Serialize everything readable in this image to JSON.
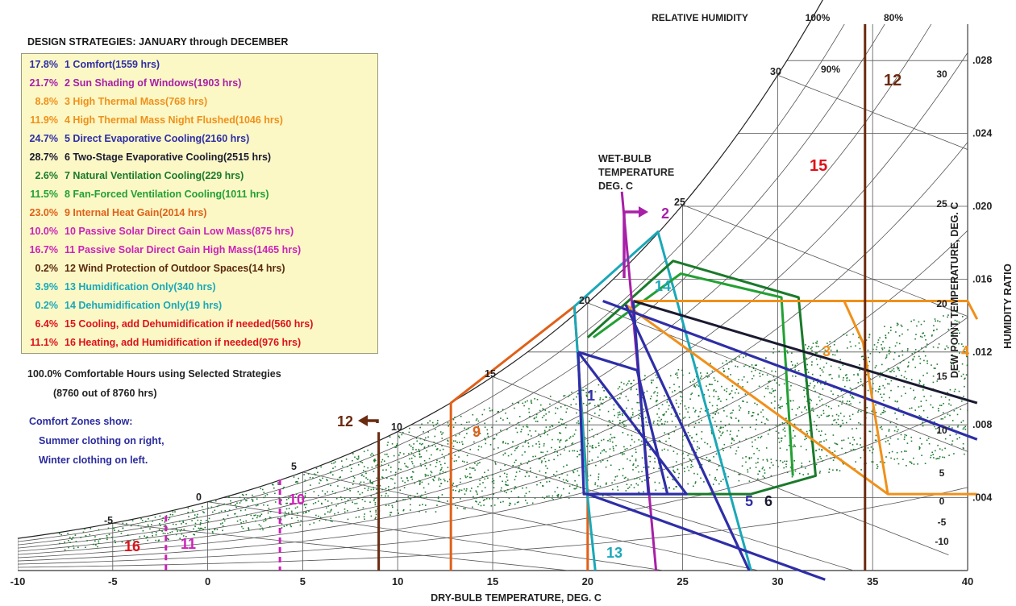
{
  "legend": {
    "title": "DESIGN STRATEGIES:  JANUARY through DECEMBER",
    "items": [
      {
        "pct": "17.8%",
        "num": "1",
        "text": "Comfort(1559 hrs)",
        "color": "#2e2ea8"
      },
      {
        "pct": "21.7%",
        "num": "2",
        "text": "Sun Shading of Windows(1903 hrs)",
        "color": "#a820a8"
      },
      {
        "pct": "8.8%",
        "num": "3",
        "text": "High Thermal Mass(768 hrs)",
        "color": "#f0901a"
      },
      {
        "pct": "11.9%",
        "num": "4",
        "text": "High Thermal Mass Night Flushed(1046 hrs)",
        "color": "#f0901a"
      },
      {
        "pct": "24.7%",
        "num": "5",
        "text": "Direct Evaporative Cooling(2160 hrs)",
        "color": "#2e2ea8"
      },
      {
        "pct": "28.7%",
        "num": "6",
        "text": "Two-Stage Evaporative Cooling(2515 hrs)",
        "color": "#1a1a30"
      },
      {
        "pct": "2.6%",
        "num": "7",
        "text": "Natural Ventilation Cooling(229 hrs)",
        "color": "#1a7a2a"
      },
      {
        "pct": "11.5%",
        "num": "8",
        "text": "Fan-Forced Ventilation Cooling(1011 hrs)",
        "color": "#22a033"
      },
      {
        "pct": "23.0%",
        "num": "9",
        "text": "Internal Heat Gain(2014 hrs)",
        "color": "#e06018"
      },
      {
        "pct": "10.0%",
        "num": "10",
        "text": "Passive Solar Direct Gain Low Mass(875 hrs)",
        "color": "#cc22b8"
      },
      {
        "pct": "16.7%",
        "num": "11",
        "text": "Passive Solar Direct Gain High Mass(1465 hrs)",
        "color": "#cc22b8"
      },
      {
        "pct": "0.2%",
        "num": "12",
        "text": "Wind Protection of Outdoor Spaces(14 hrs)",
        "color": "#5a2a10"
      },
      {
        "pct": "3.9%",
        "num": "13",
        "text": "Humidification Only(340 hrs)",
        "color": "#1aa8b8"
      },
      {
        "pct": "0.2%",
        "num": "14",
        "text": "Dehumidification Only(19 hrs)",
        "color": "#1aa8b8"
      },
      {
        "pct": "6.4%",
        "num": "15",
        "text": "Cooling, add Dehumidification if needed(560 hrs)",
        "color": "#e0101a"
      },
      {
        "pct": "11.1%",
        "num": "16",
        "text": "Heating, add Humidification if needed(976 hrs)",
        "color": "#e0101a"
      }
    ]
  },
  "summary": {
    "line1": "100.0%  Comfortable Hours using Selected Strategies",
    "line2": "(8760 out of 8760 hrs)"
  },
  "note": {
    "line1": "Comfort Zones show:",
    "line2": "Summer clothing on right,",
    "line3": "Winter clothing on left."
  },
  "chart_data": {
    "type": "psychrometric",
    "title": "",
    "xlabel": "DRY-BULB TEMPERATURE, DEG. C",
    "ylabel_right": "HUMIDITY RATIO",
    "ylabel_dewpoint": "DEW POINT TEMPERATURE, DEG. C",
    "rh_label": "RELATIVE HUMIDITY",
    "wb_label": [
      "WET-BULB",
      "TEMPERATURE",
      "DEG. C"
    ],
    "xlim": [
      -10,
      40
    ],
    "ylim": [
      0.0,
      0.03
    ],
    "x_ticks": [
      "-10",
      "-5",
      "0",
      "5",
      "10",
      "15",
      "20",
      "25",
      "30",
      "35",
      "40"
    ],
    "x_tick_values": [
      -10,
      -5,
      0,
      5,
      10,
      15,
      20,
      25,
      30,
      35,
      40
    ],
    "humidity_ticks": [
      ".028",
      ".024",
      ".020",
      ".016",
      ".012",
      ".008",
      ".004"
    ],
    "humidity_tick_values": [
      0.028,
      0.024,
      0.02,
      0.016,
      0.012,
      0.008,
      0.004
    ],
    "dewpoint_ticks": [
      "30",
      "25",
      "20",
      "15",
      "10",
      "5",
      "0",
      "-5",
      "-10"
    ],
    "rh_labels": [
      "100%",
      "90%",
      "80%"
    ],
    "wb_ticks": [
      "30",
      "25",
      "20",
      "15",
      "10",
      "5",
      "0",
      "-5"
    ],
    "grid": true,
    "zone_numbers": {
      "z1": "1",
      "z2": "2",
      "z3": "3",
      "z4": "4",
      "z5": "5",
      "z6": "6",
      "z9": "9",
      "z10": "10",
      "z11": "11",
      "z12a": "12",
      "z12b": "12",
      "z13": "13",
      "z14": "14",
      "z15": "15",
      "z16": "16"
    },
    "strategy_zones": [
      {
        "num": "1",
        "name": "Comfort",
        "polygon": [
          [
            19.5,
            0.012
          ],
          [
            22.6,
            0.012
          ],
          [
            22.8,
            0.0086
          ],
          [
            25.2,
            0.0042
          ],
          [
            19.8,
            0.0042
          ]
        ]
      },
      {
        "num": "2",
        "name": "Sun Shading of Windows",
        "polygon": [
          [
            21.8,
            0.0205
          ],
          [
            23.6,
            0.0
          ]
        ]
      },
      {
        "num": "5",
        "name": "Direct Evaporative Cooling",
        "polygon": [
          [
            19.5,
            0.012
          ],
          [
            20.8,
            0.0148
          ],
          [
            28.5,
            0.0042
          ],
          [
            20.0,
            0.0042
          ]
        ]
      },
      {
        "num": "7",
        "name": "Natural Ventilation Cooling",
        "polygon": [
          [
            20.0,
            0.0128
          ],
          [
            24.5,
            0.017
          ],
          [
            31.1,
            0.015
          ],
          [
            32.0,
            0.0052
          ],
          [
            28.6,
            0.0042
          ],
          [
            20.1,
            0.0042
          ]
        ]
      },
      {
        "num": "13",
        "name": "Humidification Only",
        "polygon": [
          [
            19.3,
            0.0145
          ],
          [
            23.7,
            0.0186
          ],
          [
            28.6,
            0.0
          ],
          [
            20.4,
            0.0
          ],
          [
            20.0,
            0.004
          ]
        ]
      },
      {
        "num": "9",
        "name": "Internal Heat Gain",
        "polygon": [
          [
            12.8,
            0.0
          ],
          [
            12.8,
            0.0092
          ],
          [
            19.3,
            0.0145
          ],
          [
            20.0,
            0.0042
          ],
          [
            20.0,
            0.0
          ]
        ]
      },
      {
        "num": "3",
        "name": "High Thermal Mass",
        "polygon": [
          [
            22.4,
            0.0148
          ],
          [
            33.5,
            0.0148
          ],
          [
            34.5,
            0.0125
          ],
          [
            35.8,
            0.0042
          ]
        ]
      },
      {
        "num": "4",
        "name": "High Thermal Mass Night Flushed",
        "polygon": [
          [
            33.5,
            0.0148
          ],
          [
            40.5,
            0.0148
          ],
          [
            40.5,
            0.0042
          ]
        ]
      }
    ],
    "scatter_note": "Hourly climate data points (8760 hrs), densest between -5 and 35 deg C at humidity ratio .002-.014"
  }
}
